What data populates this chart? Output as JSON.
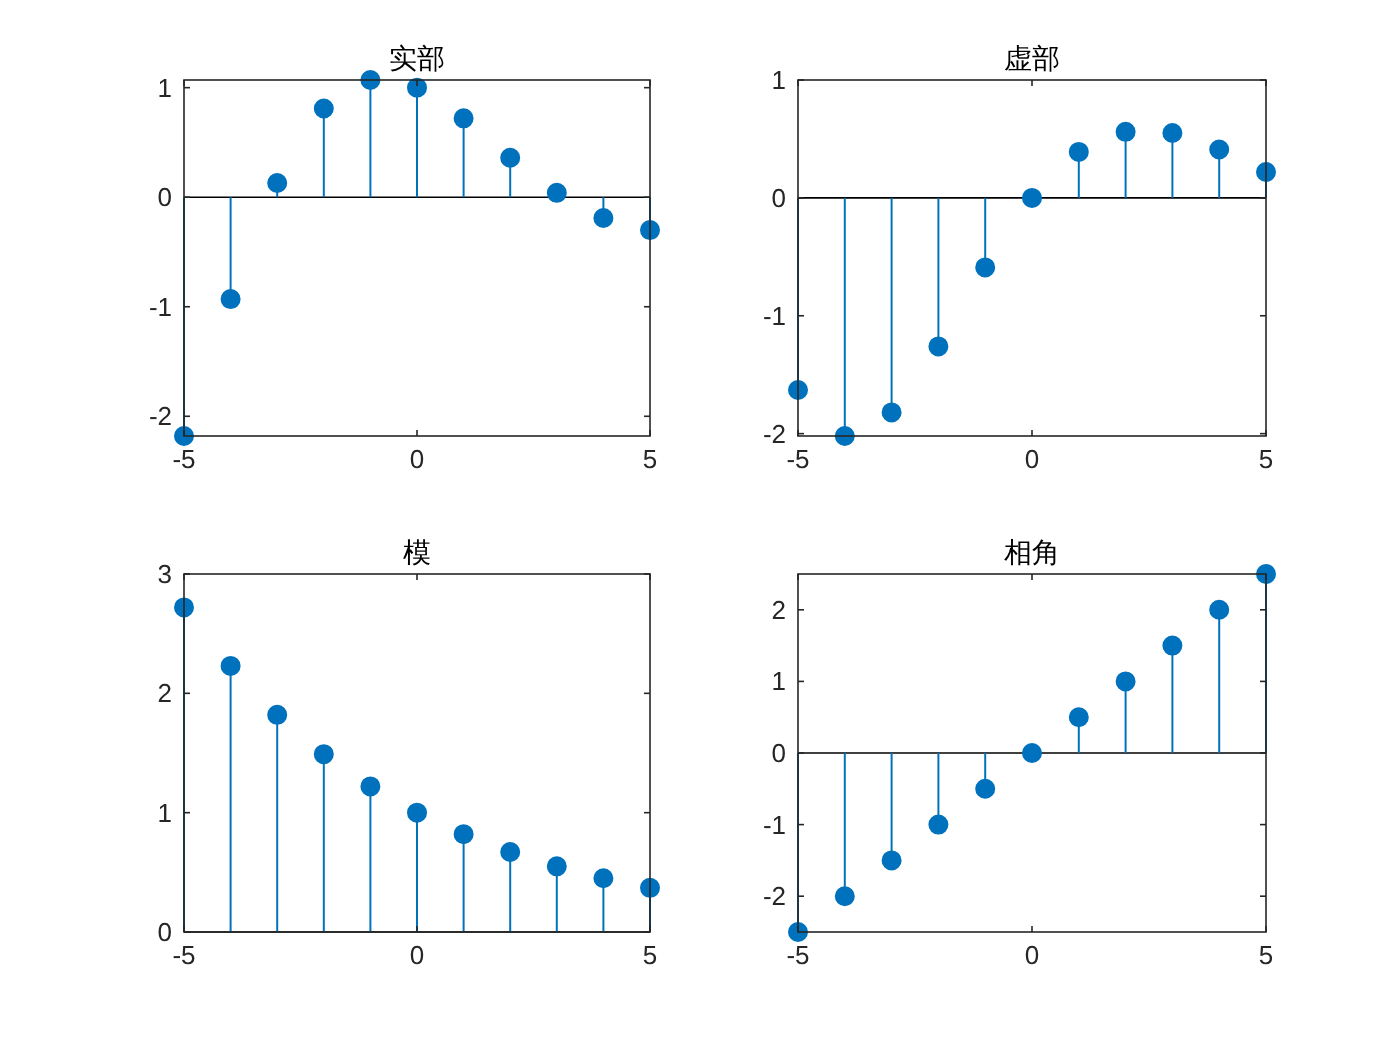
{
  "chart_data": [
    {
      "type": "lollipop",
      "title": "实部",
      "x": [
        -5,
        -4,
        -3,
        -2,
        -1,
        0,
        1,
        2,
        3,
        4,
        5
      ],
      "values": [
        -2.18,
        -0.93,
        0.13,
        0.81,
        1.07,
        1.0,
        0.72,
        0.36,
        0.04,
        -0.19,
        -0.3
      ],
      "color": "#0072bd",
      "marker": "circle",
      "xlim": [
        -5,
        5
      ],
      "ylim": [
        -2.18,
        1.07
      ],
      "xticks": [
        -5,
        0,
        5
      ],
      "yticks": [
        -2,
        -1,
        0,
        1
      ]
    },
    {
      "type": "lollipop",
      "title": "虚部",
      "x": [
        -5,
        -4,
        -3,
        -2,
        -1,
        0,
        1,
        2,
        3,
        4,
        5
      ],
      "values": [
        -1.63,
        -2.02,
        -1.82,
        -1.26,
        -0.59,
        0.0,
        0.39,
        0.56,
        0.55,
        0.41,
        0.22
      ],
      "color": "#0072bd",
      "marker": "circle",
      "xlim": [
        -5,
        5
      ],
      "ylim": [
        -2.02,
        1
      ],
      "xticks": [
        -5,
        0,
        5
      ],
      "yticks": [
        -2,
        -1,
        0,
        1
      ]
    },
    {
      "type": "lollipop",
      "title": "模",
      "x": [
        -5,
        -4,
        -3,
        -2,
        -1,
        0,
        1,
        2,
        3,
        4,
        5
      ],
      "values": [
        2.72,
        2.23,
        1.82,
        1.49,
        1.22,
        1.0,
        0.82,
        0.67,
        0.55,
        0.45,
        0.37
      ],
      "color": "#0072bd",
      "marker": "circle",
      "xlim": [
        -5,
        5
      ],
      "ylim": [
        0,
        3
      ],
      "xticks": [
        -5,
        0,
        5
      ],
      "yticks": [
        0,
        1,
        2,
        3
      ]
    },
    {
      "type": "lollipop",
      "title": "相角",
      "x": [
        -5,
        -4,
        -3,
        -2,
        -1,
        0,
        1,
        2,
        3,
        4,
        5
      ],
      "values": [
        -2.5,
        -2.0,
        -1.5,
        -1.0,
        -0.5,
        0.0,
        0.5,
        1.0,
        1.5,
        2.0,
        2.5
      ],
      "color": "#0072bd",
      "marker": "circle",
      "xlim": [
        -5,
        5
      ],
      "ylim": [
        -2.5,
        2.5
      ],
      "xticks": [
        -5,
        0,
        5
      ],
      "yticks": [
        -2,
        -1,
        0,
        1,
        2
      ]
    }
  ]
}
